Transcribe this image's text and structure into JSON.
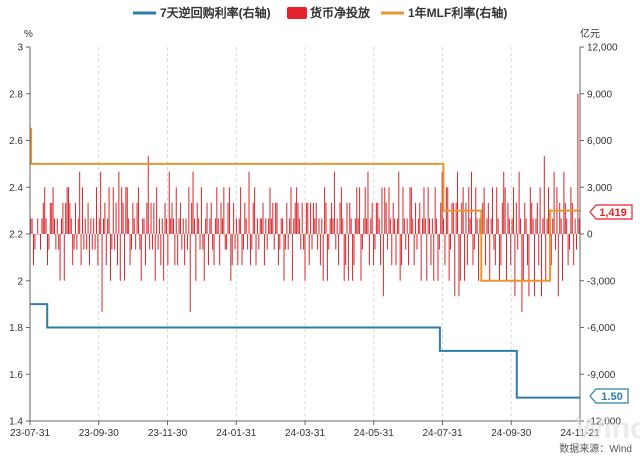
{
  "chart_data": {
    "type": "bar",
    "legend": [
      "7天逆回购利率(右轴)",
      "货币净投放",
      "1年MLF利率(右轴)"
    ],
    "left_unit": "%",
    "right_unit": "亿元",
    "left_ticks": [
      "3",
      "2.8",
      "2.6",
      "2.4",
      "2.2",
      "2",
      "1.8",
      "1.6",
      "1.4"
    ],
    "right_ticks": [
      "12,000",
      "9,000",
      "6,000",
      "3,000",
      "0",
      "-3,000",
      "-6,000",
      "-9,000",
      "-12,000"
    ],
    "x_ticks": [
      "23-07-31",
      "23-09-30",
      "23-11-30",
      "24-01-31",
      "24-03-31",
      "24-05-31",
      "24-07-31",
      "24-09-30",
      "24-11-21"
    ],
    "left_range": [
      1.4,
      3.0
    ],
    "right_range": [
      -12000,
      12000
    ],
    "date_range": [
      "2023-07-31",
      "2024-11-21"
    ],
    "series": [
      {
        "name": "7天逆回购利率(右轴)",
        "color": "#2e7ea6",
        "steps": [
          [
            "2023-07-31",
            1.9
          ],
          [
            "2023-08-15",
            1.8
          ],
          [
            "2024-07-22",
            1.7
          ],
          [
            "2024-09-27",
            1.5
          ],
          [
            "2024-11-21",
            1.5
          ]
        ]
      },
      {
        "name": "1年MLF利率(右轴)",
        "color": "#e8962e",
        "steps": [
          [
            "2023-07-31",
            2.65
          ],
          [
            "2023-08-01",
            2.5
          ],
          [
            "2024-07-25",
            2.3
          ],
          [
            "2024-08-26",
            2.3
          ],
          [
            "2024-08-27",
            2.0
          ],
          [
            "2024-10-25",
            2.0
          ],
          [
            "2024-10-26",
            2.3
          ],
          [
            "2024-11-21",
            2.3
          ]
        ]
      },
      {
        "name": "货币净投放",
        "color": "#d9262b",
        "values": [
          [
            1
          ],
          [
            1
          ],
          [
            -2
          ],
          [
            -1
          ],
          [
            0
          ],
          [
            1
          ],
          [
            0
          ],
          [
            -1
          ],
          [
            1
          ],
          [
            2
          ],
          [
            3
          ],
          [
            1
          ],
          [
            -2
          ],
          [
            -1
          ],
          [
            2
          ],
          [
            2
          ],
          [
            3
          ],
          [
            1
          ],
          [
            -1
          ],
          [
            1
          ],
          [
            -1
          ],
          [
            -3
          ],
          [
            1
          ],
          [
            2
          ],
          [
            -3
          ],
          [
            2
          ],
          [
            3
          ],
          [
            3
          ],
          [
            2
          ],
          [
            1
          ],
          [
            -2
          ],
          [
            -1
          ],
          [
            2
          ],
          [
            -1
          ],
          [
            1
          ],
          [
            4
          ],
          [
            -2
          ],
          [
            3
          ],
          [
            -1
          ],
          [
            1
          ],
          [
            -1
          ],
          [
            2
          ],
          [
            -2
          ],
          [
            1
          ],
          [
            -1
          ],
          [
            1
          ],
          [
            -1
          ],
          [
            3
          ],
          [
            -2
          ],
          [
            1
          ],
          [
            4
          ],
          [
            -5
          ],
          [
            1
          ],
          [
            2
          ],
          [
            -2
          ],
          [
            1
          ],
          [
            3
          ],
          [
            -3
          ],
          [
            -1
          ],
          [
            3
          ],
          [
            -1
          ],
          [
            2
          ],
          [
            -2
          ],
          [
            4
          ],
          [
            -3
          ],
          [
            3
          ],
          [
            2
          ],
          [
            -3
          ],
          [
            3
          ],
          [
            3
          ],
          [
            1
          ],
          [
            -2
          ],
          [
            -1
          ],
          [
            2
          ],
          [
            1
          ],
          [
            -1
          ],
          [
            2
          ],
          [
            3
          ],
          [
            -1
          ],
          [
            -3
          ],
          [
            1
          ],
          [
            1
          ],
          [
            -2
          ],
          [
            2
          ],
          [
            5
          ],
          [
            -1
          ],
          [
            2
          ],
          [
            -1
          ],
          [
            2
          ],
          [
            -3
          ],
          [
            3
          ],
          [
            -1
          ],
          [
            1
          ],
          [
            -2
          ],
          [
            1
          ],
          [
            -3
          ],
          [
            2
          ],
          [
            1
          ],
          [
            -2
          ],
          [
            4
          ],
          [
            1
          ],
          [
            2
          ],
          [
            1
          ],
          [
            -2
          ],
          [
            3
          ],
          [
            -2
          ],
          [
            1
          ],
          [
            2
          ],
          [
            -1
          ],
          [
            1
          ],
          [
            -2
          ],
          [
            1
          ],
          [
            -1
          ],
          [
            3
          ],
          [
            -5
          ],
          [
            2
          ],
          [
            4
          ],
          [
            1
          ],
          [
            -3
          ],
          [
            2
          ],
          [
            1
          ],
          [
            -1
          ],
          [
            3
          ],
          [
            -1
          ],
          [
            -3
          ],
          [
            1
          ],
          [
            2
          ],
          [
            -2
          ],
          [
            1
          ],
          [
            2
          ],
          [
            -1
          ],
          [
            -2
          ],
          [
            1
          ],
          [
            3
          ],
          [
            1
          ],
          [
            -2
          ],
          [
            2
          ],
          [
            1
          ],
          [
            3
          ],
          [
            -1
          ],
          [
            -1
          ],
          [
            2
          ],
          [
            3
          ],
          [
            -3
          ],
          [
            -2
          ],
          [
            2
          ],
          [
            -1
          ],
          [
            1
          ],
          [
            -2
          ],
          [
            1
          ],
          [
            3
          ],
          [
            -2
          ],
          [
            -1
          ],
          [
            2
          ],
          [
            1
          ],
          [
            -1
          ],
          [
            4
          ],
          [
            -2
          ],
          [
            -1
          ],
          [
            2
          ],
          [
            3
          ],
          [
            -2
          ],
          [
            1
          ],
          [
            -1
          ],
          [
            1
          ],
          [
            1
          ],
          [
            2
          ],
          [
            -2
          ],
          [
            1
          ],
          [
            -1
          ],
          [
            1
          ],
          [
            3
          ],
          [
            1
          ],
          [
            2
          ],
          [
            -1
          ],
          [
            2
          ],
          [
            2
          ],
          [
            -2
          ],
          [
            -1
          ],
          [
            1
          ],
          [
            1
          ],
          [
            -3
          ],
          [
            -1
          ],
          [
            2
          ],
          [
            -1
          ],
          [
            1
          ],
          [
            3
          ],
          [
            -3
          ],
          [
            1
          ],
          [
            2
          ],
          [
            3
          ],
          [
            2
          ],
          [
            1
          ],
          [
            -1
          ],
          [
            2
          ],
          [
            -1
          ],
          [
            -3
          ],
          [
            2
          ],
          [
            2
          ],
          [
            -2
          ],
          [
            2
          ],
          [
            -1
          ],
          [
            2
          ],
          [
            1
          ],
          [
            2
          ],
          [
            -1
          ],
          [
            1
          ],
          [
            -2
          ],
          [
            1
          ],
          [
            -3
          ],
          [
            3
          ],
          [
            2
          ],
          [
            -3
          ],
          [
            -1
          ],
          [
            1
          ],
          [
            2
          ],
          [
            1
          ],
          [
            4
          ],
          [
            -1
          ],
          [
            1
          ],
          [
            -2
          ],
          [
            2
          ],
          [
            3
          ],
          [
            1
          ],
          [
            -3
          ],
          [
            -2
          ],
          [
            2
          ],
          [
            -3
          ],
          [
            2
          ],
          [
            1
          ],
          [
            -3
          ],
          [
            -2
          ],
          [
            1
          ],
          [
            3
          ],
          [
            1
          ],
          [
            3
          ],
          [
            -3
          ],
          [
            -1
          ],
          [
            1
          ],
          [
            3
          ],
          [
            1
          ],
          [
            4
          ],
          [
            -2
          ],
          [
            1
          ],
          [
            2
          ],
          [
            -2
          ],
          [
            -1
          ],
          [
            2
          ],
          [
            2
          ],
          [
            1
          ],
          [
            -2
          ],
          [
            3
          ],
          [
            -4
          ],
          [
            3
          ],
          [
            2
          ],
          [
            -1
          ],
          [
            3
          ],
          [
            1
          ],
          [
            -2
          ],
          [
            2
          ],
          [
            1
          ],
          [
            -2
          ],
          [
            1
          ],
          [
            4
          ],
          [
            -3
          ],
          [
            -2
          ],
          [
            3
          ],
          [
            1
          ],
          [
            -1
          ],
          [
            1
          ],
          [
            -2
          ],
          [
            3
          ],
          [
            3
          ],
          [
            1
          ],
          [
            -2
          ],
          [
            2
          ],
          [
            -1
          ],
          [
            1
          ],
          [
            2
          ],
          [
            -3
          ],
          [
            1
          ],
          [
            3
          ],
          [
            1
          ],
          [
            -3
          ],
          [
            3
          ],
          [
            1
          ],
          [
            -2
          ],
          [
            1
          ],
          [
            -3
          ],
          [
            3
          ],
          [
            1
          ],
          [
            -3
          ],
          [
            -1
          ],
          [
            2
          ],
          [
            4
          ],
          [
            1
          ],
          [
            -2
          ],
          [
            3
          ],
          [
            3
          ],
          [
            -3
          ],
          [
            -1
          ],
          [
            2
          ],
          [
            2
          ],
          [
            -4
          ],
          [
            2
          ],
          [
            4
          ],
          [
            -4
          ],
          [
            -3
          ],
          [
            2
          ],
          [
            3
          ],
          [
            -3
          ],
          [
            2
          ],
          [
            -2
          ],
          [
            3
          ],
          [
            1
          ],
          [
            4
          ],
          [
            -2
          ],
          [
            -1
          ],
          [
            3
          ],
          [
            1
          ],
          [
            -3
          ],
          [
            1
          ],
          [
            -3
          ],
          [
            2
          ],
          [
            3
          ],
          [
            -2
          ],
          [
            1
          ],
          [
            2
          ],
          [
            -3
          ],
          [
            1
          ],
          [
            3
          ],
          [
            -1
          ],
          [
            -2
          ],
          [
            3
          ],
          [
            1
          ],
          [
            -3
          ],
          [
            -2
          ],
          [
            2
          ],
          [
            4
          ],
          [
            3
          ],
          [
            -3
          ],
          [
            2
          ],
          [
            1
          ],
          [
            -2
          ],
          [
            1
          ],
          [
            3
          ],
          [
            -4
          ],
          [
            2
          ],
          [
            -1
          ],
          [
            4
          ],
          [
            1
          ],
          [
            -5
          ],
          [
            -3
          ],
          [
            2
          ],
          [
            1
          ],
          [
            -2
          ],
          [
            -4
          ],
          [
            3
          ],
          [
            2
          ],
          [
            1
          ],
          [
            -4
          ],
          [
            1
          ],
          [
            2
          ],
          [
            -2
          ],
          [
            3
          ],
          [
            -4
          ],
          [
            1
          ],
          [
            5
          ],
          [
            -3
          ],
          [
            1
          ],
          [
            3
          ],
          [
            -2
          ],
          [
            -2
          ],
          [
            1
          ],
          [
            4
          ],
          [
            -1
          ],
          [
            3
          ],
          [
            -4
          ],
          [
            2
          ],
          [
            1
          ],
          [
            -3
          ],
          [
            4
          ],
          [
            2
          ],
          [
            1
          ],
          [
            -2
          ],
          [
            -1
          ],
          [
            3
          ],
          [
            2
          ],
          [
            -2
          ],
          [
            1
          ],
          [
            -1
          ],
          [
            9
          ],
          [
            1
          ]
        ]
      }
    ],
    "end_labels": {
      "rate_right": "1.50",
      "bar_right": "1,419"
    },
    "source": "数据来源：Wind"
  }
}
